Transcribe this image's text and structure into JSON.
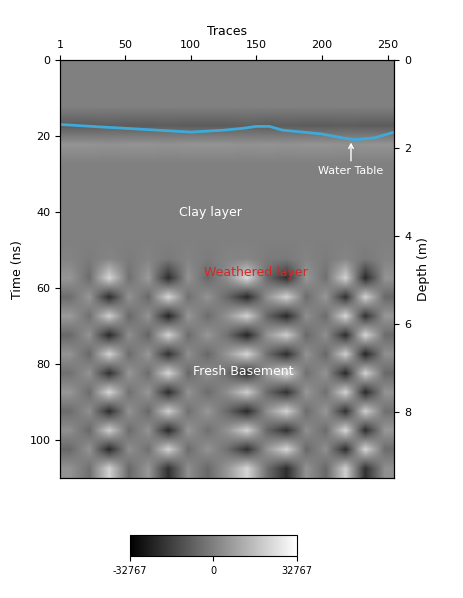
{
  "chart_data": {
    "type": "radargram",
    "xlabel": "Traces",
    "ylabel": "Time (ns)",
    "y2label": "Depth (m)",
    "xlim": [
      1,
      255
    ],
    "xticks": [
      1,
      50,
      100,
      150,
      200,
      250
    ],
    "ylim": [
      0,
      110
    ],
    "yticks": [
      0,
      20,
      40,
      60,
      80,
      100
    ],
    "y2lim": [
      0,
      9.5
    ],
    "y2ticks": [
      0,
      2,
      4,
      6,
      8
    ],
    "grid": false,
    "cells": [
      [
        0,
        0,
        0,
        0,
        0,
        0,
        0,
        0,
        0,
        0,
        0,
        0,
        0,
        0,
        0,
        0,
        0
      ],
      [
        0,
        0,
        0,
        0,
        0,
        0,
        0,
        0,
        0,
        0,
        0,
        0,
        0,
        0,
        0,
        0,
        0
      ],
      [
        0,
        0,
        0,
        0,
        0,
        0,
        0,
        0,
        0,
        0,
        0,
        0,
        0,
        0,
        0,
        0,
        0
      ],
      [
        -9000,
        -9000,
        -8500,
        -9000,
        -9000,
        -8500,
        -9000,
        -9000,
        -9000,
        -8000,
        -9000,
        -8500,
        -9000,
        -9000,
        -8500,
        -9000,
        -9000
      ],
      [
        5000,
        5000,
        4500,
        5000,
        5000,
        4500,
        5000,
        5000,
        5000,
        4500,
        5000,
        4500,
        5000,
        5000,
        4500,
        5000,
        5000
      ],
      [
        0,
        0,
        0,
        0,
        0,
        0,
        0,
        0,
        0,
        0,
        0,
        0,
        0,
        0,
        0,
        0,
        0
      ],
      [
        0,
        0,
        0,
        0,
        0,
        0,
        0,
        0,
        0,
        0,
        0,
        0,
        0,
        0,
        0,
        0,
        0
      ],
      [
        0,
        0,
        0,
        0,
        0,
        0,
        0,
        0,
        0,
        0,
        0,
        0,
        0,
        0,
        0,
        0,
        0
      ],
      [
        0,
        0,
        0,
        0,
        0,
        0,
        0,
        0,
        0,
        0,
        0,
        0,
        0,
        0,
        0,
        0,
        0
      ],
      [
        0,
        0,
        0,
        0,
        0,
        0,
        0,
        0,
        0,
        0,
        0,
        0,
        0,
        0,
        0,
        0,
        0
      ],
      [
        1000,
        -1000,
        1500,
        -1000,
        1000,
        -1500,
        1000,
        -1000,
        1000,
        1500,
        -1000,
        -1500,
        1000,
        -1000,
        1500,
        -1500,
        1000
      ],
      [
        6000,
        -5000,
        22000,
        -4000,
        7000,
        -21000,
        5000,
        -6000,
        4000,
        23000,
        -5000,
        -20000,
        6000,
        -4000,
        21000,
        -22000,
        5000
      ],
      [
        -5000,
        6000,
        -21000,
        5000,
        -6000,
        22000,
        -4000,
        5000,
        -6000,
        -22000,
        4000,
        21000,
        -5000,
        6000,
        -20000,
        21000,
        -6000
      ],
      [
        7000,
        -4000,
        20000,
        -6000,
        5000,
        -23000,
        6000,
        -5000,
        5000,
        21000,
        -6000,
        -22000,
        4000,
        -5000,
        22000,
        -20000,
        6000
      ],
      [
        -6000,
        5000,
        -22000,
        4000,
        -7000,
        21000,
        -5000,
        6000,
        -4000,
        -23000,
        5000,
        20000,
        -6000,
        4000,
        -21000,
        22000,
        -5000
      ],
      [
        5000,
        -6000,
        21000,
        -5000,
        6000,
        -20000,
        4000,
        -6000,
        6000,
        22000,
        -4000,
        -21000,
        5000,
        -6000,
        20000,
        -23000,
        4000
      ],
      [
        -4000,
        5000,
        -20000,
        6000,
        -5000,
        22000,
        -6000,
        4000,
        -5000,
        -21000,
        6000,
        22000,
        -4000,
        5000,
        -22000,
        21000,
        -6000
      ],
      [
        6000,
        -5000,
        22000,
        -4000,
        6000,
        -21000,
        5000,
        -5000,
        4000,
        20000,
        -5000,
        -20000,
        6000,
        -4000,
        21000,
        -22000,
        5000
      ],
      [
        -5000,
        4000,
        -21000,
        5000,
        -6000,
        20000,
        -4000,
        6000,
        -6000,
        -22000,
        4000,
        21000,
        -5000,
        6000,
        -20000,
        20000,
        -4000
      ],
      [
        4000,
        -6000,
        20000,
        -5000,
        5000,
        -22000,
        6000,
        -4000,
        5000,
        21000,
        -6000,
        -20000,
        4000,
        -5000,
        22000,
        -21000,
        6000
      ],
      [
        -6000,
        5000,
        -22000,
        4000,
        -4000,
        21000,
        -5000,
        5000,
        -4000,
        -20000,
        5000,
        22000,
        -6000,
        4000,
        -21000,
        22000,
        -5000
      ],
      [
        5000,
        -4000,
        21000,
        -6000,
        6000,
        -20000,
        4000,
        -6000,
        6000,
        22000,
        -4000,
        -21000,
        5000,
        -6000,
        20000,
        -20000,
        4000
      ]
    ],
    "colorbar": {
      "lim": [
        -32767,
        32767
      ],
      "ticks": [
        -32767,
        0,
        32767
      ]
    },
    "series": [
      {
        "name": "Water Table",
        "color": "#3fa9d8",
        "x": [
          1,
          25,
          50,
          75,
          100,
          125,
          140,
          150,
          160,
          170,
          185,
          200,
          215,
          225,
          240,
          255
        ],
        "values": [
          17,
          17.5,
          18,
          18.5,
          19,
          18.5,
          18,
          17.5,
          17.5,
          18.5,
          19,
          19.5,
          20.5,
          21,
          20.5,
          19
        ]
      }
    ],
    "annotations": [
      {
        "text": "Water Table",
        "x": 222,
        "y": 28,
        "arrow_to": [
          222,
          21
        ],
        "color": "#ffffff"
      },
      {
        "text": "Clay layer",
        "x": 115,
        "y": 40,
        "color": "#ffffff"
      },
      {
        "text": "Weathered layer",
        "x": 150,
        "y": 56,
        "color": "#d62728"
      },
      {
        "text": "Fresh Basement",
        "x": 140,
        "y": 82,
        "color": "#ffffff"
      }
    ]
  }
}
